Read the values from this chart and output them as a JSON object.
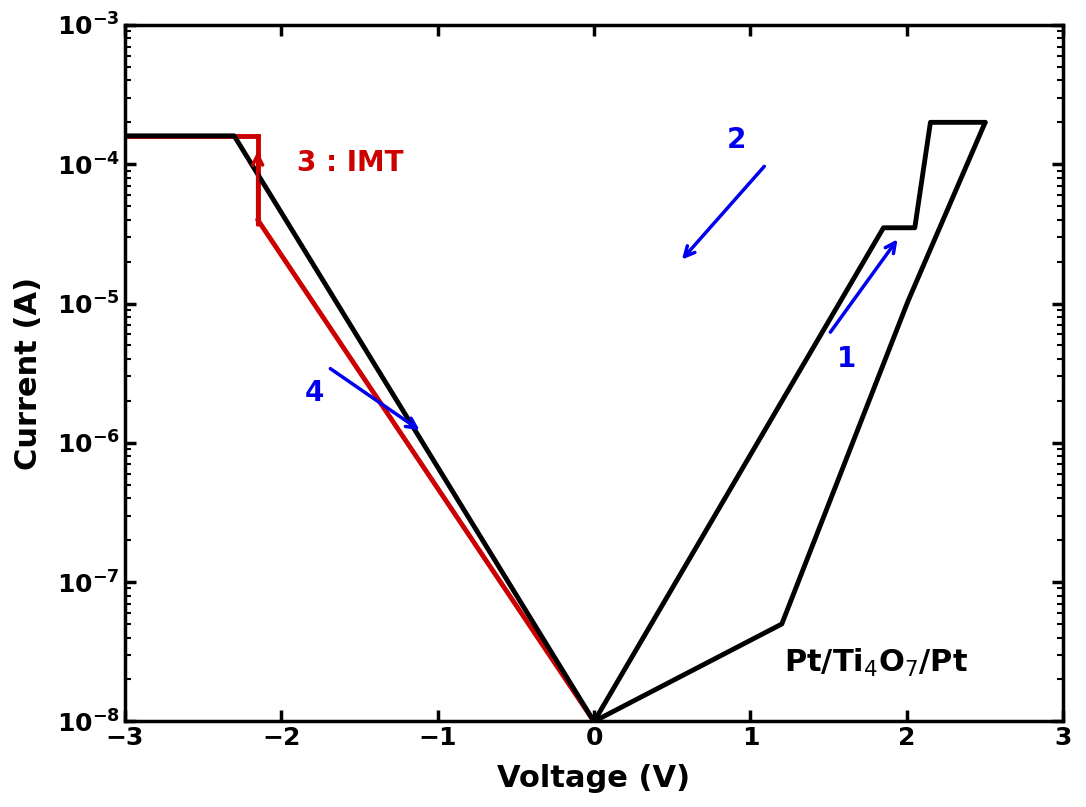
{
  "xlabel": "Voltage (V)",
  "ylabel": "Current (A)",
  "xlim": [
    -3,
    3
  ],
  "ylim": [
    1e-08,
    0.001
  ],
  "black": "#000000",
  "red": "#cc0000",
  "blue": "#0000ee",
  "linewidth": 3.5,
  "label_fontsize": 22,
  "tick_fontsize": 18,
  "annotation_fontsize": 20,
  "device_label": "Pt/Ti$_4$O$_7$/Pt"
}
